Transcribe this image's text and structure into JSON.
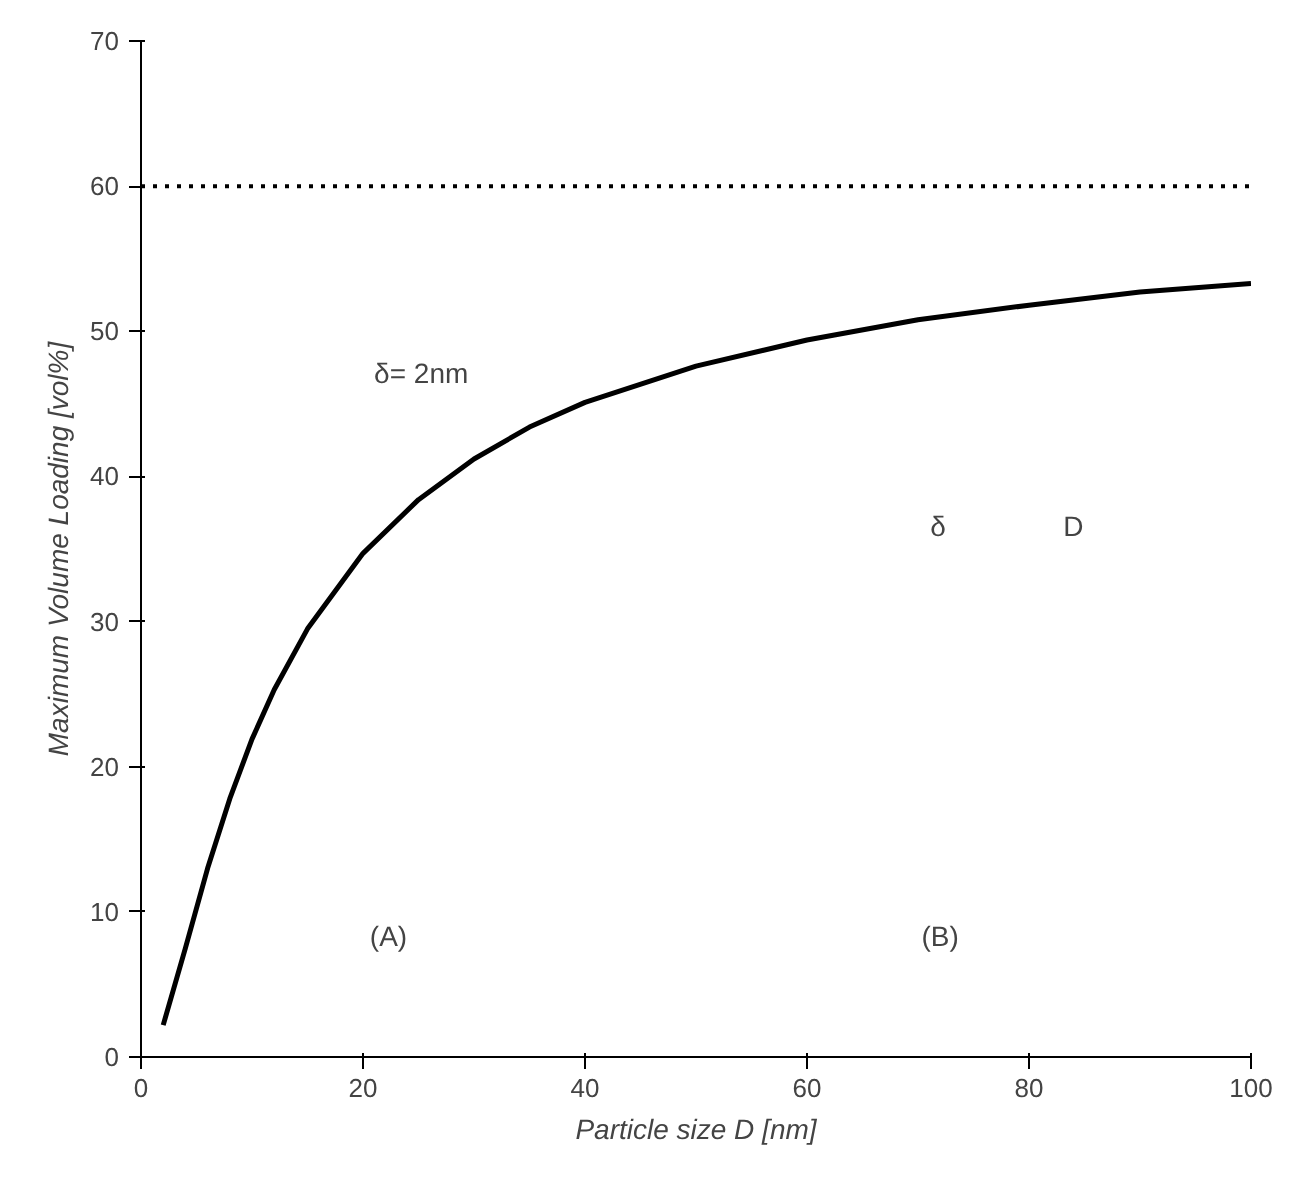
{
  "chart_data": {
    "type": "line",
    "xlabel": "Particle size D [nm]",
    "ylabel": "Maximum Volume Loading [vol%]",
    "x": [
      2,
      4,
      6,
      8,
      10,
      12,
      15,
      20,
      25,
      30,
      35,
      40,
      50,
      60,
      70,
      80,
      90,
      100
    ],
    "series": [
      {
        "color": "#000000",
        "values": [
          2.2,
          7.5,
          13.0,
          17.8,
          21.9,
          25.3,
          29.5,
          34.7,
          38.4,
          41.2,
          43.4,
          45.1,
          47.6,
          49.4,
          50.8,
          51.8,
          52.7,
          53.3
        ]
      }
    ],
    "xlim": [
      0,
      100
    ],
    "ylim": [
      0,
      70
    ],
    "xticks": [
      0,
      20,
      40,
      60,
      80,
      100
    ],
    "yticks": [
      0,
      10,
      20,
      30,
      40,
      50,
      60,
      70
    ],
    "ref_lines": [
      {
        "axis": "y",
        "value": 60,
        "line_style": "dotted",
        "color": "#000000"
      }
    ],
    "annotations": [
      "δ= 2nm",
      "(A)",
      "(B)",
      "δ",
      "D"
    ],
    "marker": "none",
    "line_style": "solid"
  }
}
